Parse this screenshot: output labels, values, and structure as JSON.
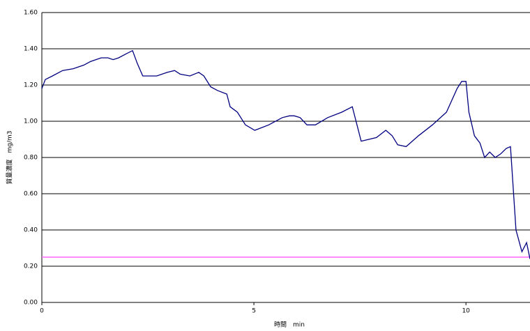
{
  "chart_data": {
    "type": "line",
    "x_label": "時間　min",
    "y_label": "質量濃度　mg/m3",
    "x": [
      0,
      0.08,
      0.25,
      0.49,
      0.74,
      0.99,
      1.15,
      1.4,
      1.56,
      1.68,
      1.81,
      1.97,
      2.14,
      2.25,
      2.38,
      2.5,
      2.71,
      2.96,
      3.13,
      3.26,
      3.49,
      3.7,
      3.82,
      3.98,
      4.14,
      4.36,
      4.44,
      4.61,
      4.8,
      5.02,
      5.35,
      5.67,
      5.84,
      5.95,
      6.09,
      6.25,
      6.45,
      6.74,
      7.07,
      7.32,
      7.43,
      7.53,
      7.89,
      8.11,
      8.26,
      8.39,
      8.59,
      8.88,
      9.21,
      9.54,
      9.79,
      9.9,
      10.0,
      10.07,
      10.2,
      10.33,
      10.44,
      10.56,
      10.69,
      10.82,
      10.95,
      11.05,
      11.18,
      11.32,
      11.43,
      11.51
    ],
    "series": [
      {
        "color": "#000080",
        "values": [
          1.18,
          1.23,
          1.25,
          1.28,
          1.29,
          1.31,
          1.33,
          1.35,
          1.35,
          1.34,
          1.35,
          1.37,
          1.39,
          1.32,
          1.25,
          1.25,
          1.25,
          1.27,
          1.28,
          1.26,
          1.25,
          1.27,
          1.25,
          1.19,
          1.17,
          1.15,
          1.08,
          1.05,
          0.98,
          0.95,
          0.98,
          1.02,
          1.03,
          1.03,
          1.02,
          0.98,
          0.98,
          1.02,
          1.05,
          1.08,
          0.98,
          0.89,
          0.91,
          0.95,
          0.92,
          0.87,
          0.86,
          0.92,
          0.98,
          1.05,
          1.18,
          1.22,
          1.22,
          1.05,
          0.92,
          0.88,
          0.8,
          0.83,
          0.8,
          0.82,
          0.85,
          0.86,
          0.4,
          0.28,
          0.33,
          0.24
        ]
      }
    ],
    "reference_line": {
      "value": 0.25,
      "color": "#ff66ff"
    },
    "xlim": [
      0,
      11.51
    ],
    "xticks": [
      0,
      5,
      10
    ],
    "ylim": [
      0,
      1.6
    ],
    "yticks": [
      {
        "value": 0,
        "label": "0.00"
      },
      {
        "value": 0.2,
        "label": "0.20"
      },
      {
        "value": 0.4,
        "label": "0.40"
      },
      {
        "value": 0.6,
        "label": "0.60"
      },
      {
        "value": 0.8,
        "label": "0.80"
      },
      {
        "value": 1.0,
        "label": "1.00"
      },
      {
        "value": 1.2,
        "label": "1.20"
      },
      {
        "value": 1.4,
        "label": "1.40"
      },
      {
        "value": 1.6,
        "label": "1.60"
      }
    ],
    "grid": true
  }
}
